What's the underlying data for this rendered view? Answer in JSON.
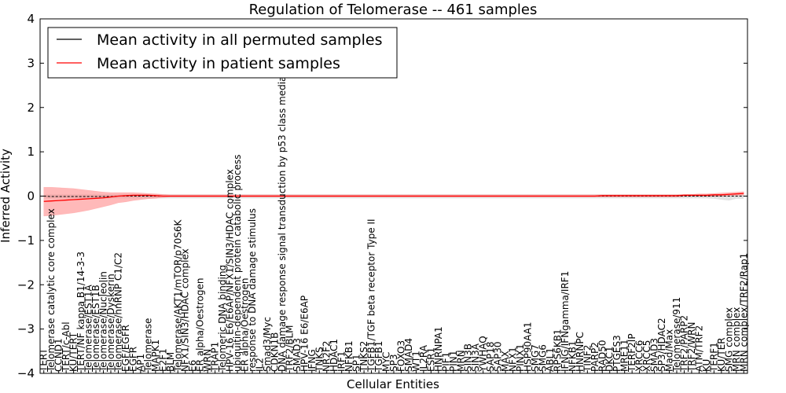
{
  "chart_data": {
    "type": "line",
    "title": "Regulation of Telomerase -- 461 samples",
    "xlabel": "Cellular Entities",
    "ylabel": "Inferred Activity",
    "ylim": [
      -4,
      4
    ],
    "yticks": [
      -4,
      -3,
      -2,
      -1,
      0,
      1,
      2,
      3,
      4
    ],
    "ytick_labels": [
      "−4",
      "−3",
      "−2",
      "−1",
      "0",
      "1",
      "2",
      "3",
      "4"
    ],
    "grid": false,
    "legend_position": "top-left",
    "colors": {
      "permuted": "#000000",
      "patient": "#ff0000",
      "patient_band": "#ff7f7f",
      "permuted_band": "#b0b0b0"
    },
    "categories": [
      "TERT",
      "Telomerase catalytic core complex",
      "CCND1",
      "TERT/c-Abl",
      "KU/TERT",
      "TERT/NF kappa B1/14-3-3",
      "Telomerase/EST1A",
      "Telomerase/EST1B",
      "Telomerase/Nucleolin",
      "Telomerase/Dyskerin",
      "Telomerase/hnRNP C1/C2",
      "EGF/EGFR",
      "EGFR",
      "AP1",
      "Telomerase",
      "MAPK1",
      "E2F1",
      "BLM",
      "Telomerase/AKT1/mTOR/p70S6K",
      "NFX1/SIN3/HDAC complex",
      "E6",
      "ER alpha/Oestrogen",
      "WRN",
      "TRAP1",
      "Telomeric DNA binding",
      "HPV-16 E6/E6AP/NFX1/SIN3/HDAC complex",
      "ubiquitin-dependent protein catabolic process",
      "ER alpha/Oestrogen",
      "response to DNA damage stimulus",
      "IL2",
      "Smad3/Myc",
      "CDKN1B",
      "DNA damage response signal transduction by p53 class mediator",
      "TRF2/BLM",
      "SMAD3",
      "HPV-16 E6/E6AP",
      "IFNG",
      "TNKS",
      "NR2F2",
      "HDAC1",
      "IRF1",
      "NFKB1",
      "SP1",
      "TNKS2",
      "TGFB1/TGF beta receptor Type II",
      "TGFB1",
      "MYC",
      "SP3",
      "FOXO3",
      "SMAD4",
      "WT1",
      "IL2RA",
      "ESR1",
      "HNRNPA1",
      "PIF1",
      "PIN1",
      "MRN",
      "SIN3B",
      "SIN3A",
      "YWHAQ",
      "SAP18",
      "SAP30",
      "MAX",
      "NFX1",
      "PINX1",
      "HSP90AA1",
      "SMG7",
      "SMG6",
      "ABL1",
      "RPS6KB1",
      "IFNG/IFNgamma/IRF1",
      "NFKB1",
      "HNRNPC",
      "TINF2",
      "PARP2",
      "RAD50",
      "DKC1",
      "PTGES3",
      "MRE11",
      "TERF2IP",
      "XRCC6",
      "XRCC5",
      "SMAD3",
      "SP3/HDAC2",
      "Mad/Max",
      "Telomerase/911",
      "TRF2/PARP2",
      "TRF2/WRN",
      "ATM/TRF2",
      "KU",
      "TERF1",
      "KU/TER",
      "SMG complex",
      "MRN complex",
      "MRN complex/TRF2/Rap1"
    ],
    "series": [
      {
        "name": "Mean activity in all permuted samples",
        "values": [
          0.0,
          -0.01,
          -0.01,
          -0.01,
          -0.01,
          -0.01,
          -0.01,
          -0.01,
          -0.01,
          -0.01,
          0.0,
          0.0,
          0.0,
          0.0,
          0.0,
          0.0,
          0.0,
          0.0,
          0.0,
          0.0,
          0.0,
          0.0,
          0.0,
          0.0,
          0.0,
          0.0,
          0.0,
          0.0,
          0.0,
          0.0,
          0.0,
          0.0,
          0.0,
          0.0,
          0.0,
          0.0,
          0.0,
          0.0,
          0.0,
          0.0,
          0.0,
          0.0,
          0.0,
          0.0,
          0.0,
          0.0,
          0.0,
          0.0,
          0.0,
          0.0,
          0.0,
          0.0,
          0.0,
          0.0,
          0.0,
          0.0,
          0.0,
          0.0,
          0.0,
          0.0,
          0.0,
          0.0,
          0.0,
          0.0,
          0.0,
          0.0,
          0.0,
          0.0,
          0.0,
          0.0,
          0.0,
          0.0,
          0.0,
          0.0,
          0.0,
          0.0,
          0.0,
          0.0,
          0.0,
          0.0,
          0.0,
          0.0,
          0.0,
          0.0,
          0.0,
          0.0,
          0.0,
          0.0,
          0.0,
          0.0,
          0.0,
          0.0,
          0.0,
          0.0,
          0.0
        ],
        "band_low": [
          -0.05,
          -0.05,
          -0.05,
          -0.05,
          -0.05,
          -0.05,
          -0.05,
          -0.05,
          -0.05,
          -0.05,
          -0.05,
          -0.05,
          -0.05,
          -0.05,
          -0.05,
          -0.05,
          -0.05,
          -0.05,
          -0.05,
          -0.05,
          -0.05,
          -0.05,
          -0.05,
          -0.05,
          -0.05,
          -0.05,
          -0.05,
          -0.05,
          -0.05,
          -0.05,
          -0.05,
          -0.05,
          -0.05,
          -0.05,
          -0.05,
          -0.05,
          -0.05,
          -0.05,
          -0.05,
          -0.05,
          -0.05,
          -0.05,
          -0.05,
          -0.05,
          -0.05,
          -0.05,
          -0.05,
          -0.05,
          -0.05,
          -0.05,
          -0.05,
          -0.05,
          -0.05,
          -0.05,
          -0.05,
          -0.05,
          -0.05,
          -0.05,
          -0.05,
          -0.05,
          -0.05,
          -0.05,
          -0.05,
          -0.05,
          -0.05,
          -0.05,
          -0.05,
          -0.05,
          -0.05,
          -0.05,
          -0.05,
          -0.05,
          -0.05,
          -0.05,
          -0.05,
          -0.05,
          -0.05,
          -0.05,
          -0.05,
          -0.05,
          -0.05,
          -0.05,
          -0.05,
          -0.05,
          -0.05,
          -0.05,
          -0.05,
          -0.05,
          -0.05,
          -0.05,
          -0.06,
          -0.08,
          -0.1,
          -0.06,
          -0.06
        ],
        "band_high": [
          0.04,
          0.04,
          0.04,
          0.04,
          0.04,
          0.04,
          0.04,
          0.04,
          0.04,
          0.04,
          0.04,
          0.04,
          0.04,
          0.04,
          0.04,
          0.04,
          0.04,
          0.04,
          0.04,
          0.04,
          0.04,
          0.04,
          0.04,
          0.04,
          0.04,
          0.04,
          0.04,
          0.04,
          0.04,
          0.04,
          0.04,
          0.04,
          0.04,
          0.04,
          0.04,
          0.04,
          0.04,
          0.04,
          0.04,
          0.04,
          0.04,
          0.04,
          0.04,
          0.04,
          0.04,
          0.04,
          0.04,
          0.04,
          0.04,
          0.04,
          0.04,
          0.04,
          0.04,
          0.04,
          0.04,
          0.04,
          0.04,
          0.04,
          0.04,
          0.04,
          0.04,
          0.04,
          0.04,
          0.04,
          0.04,
          0.04,
          0.04,
          0.04,
          0.04,
          0.04,
          0.04,
          0.04,
          0.04,
          0.04,
          0.04,
          0.04,
          0.04,
          0.04,
          0.04,
          0.04,
          0.04,
          0.04,
          0.04,
          0.04,
          0.04,
          0.04,
          0.04,
          0.04,
          0.04,
          0.04,
          0.04,
          0.04,
          0.04,
          0.04,
          0.04
        ]
      },
      {
        "name": "Mean activity in patient samples",
        "values": [
          -0.12,
          -0.11,
          -0.1,
          -0.09,
          -0.08,
          -0.07,
          -0.06,
          -0.05,
          -0.04,
          -0.02,
          0.0,
          0.01,
          0.02,
          0.02,
          0.02,
          0.01,
          0.0,
          0.0,
          0.0,
          0.0,
          0.0,
          0.0,
          0.0,
          0.0,
          0.0,
          0.0,
          0.0,
          0.0,
          0.0,
          0.0,
          0.0,
          0.0,
          0.0,
          0.0,
          0.0,
          0.0,
          0.0,
          0.0,
          0.0,
          0.0,
          0.0,
          0.0,
          0.0,
          0.0,
          0.0,
          0.0,
          0.0,
          0.0,
          0.0,
          0.0,
          0.0,
          0.0,
          0.0,
          0.0,
          0.0,
          0.0,
          0.0,
          0.0,
          0.0,
          0.0,
          0.0,
          0.0,
          0.0,
          0.0,
          0.0,
          0.0,
          0.0,
          0.0,
          0.0,
          0.0,
          0.0,
          0.0,
          0.0,
          0.0,
          0.0,
          0.01,
          0.01,
          0.01,
          0.01,
          0.01,
          0.01,
          0.01,
          0.01,
          0.01,
          0.01,
          0.01,
          0.02,
          0.02,
          0.02,
          0.02,
          0.03,
          0.03,
          0.04,
          0.05,
          0.06
        ],
        "band_low": [
          -0.45,
          -0.44,
          -0.42,
          -0.4,
          -0.38,
          -0.35,
          -0.32,
          -0.28,
          -0.24,
          -0.2,
          -0.15,
          -0.13,
          -0.1,
          -0.08,
          -0.06,
          -0.05,
          -0.03,
          -0.02,
          -0.02,
          -0.02,
          -0.02,
          -0.02,
          -0.02,
          -0.02,
          -0.02,
          -0.02,
          -0.02,
          -0.02,
          -0.02,
          -0.02,
          -0.02,
          -0.02,
          -0.02,
          -0.02,
          -0.02,
          -0.02,
          -0.02,
          -0.02,
          -0.02,
          -0.02,
          -0.02,
          -0.02,
          -0.02,
          -0.02,
          -0.02,
          -0.02,
          -0.02,
          -0.02,
          -0.02,
          -0.02,
          -0.02,
          -0.02,
          -0.02,
          -0.02,
          -0.02,
          -0.02,
          -0.02,
          -0.02,
          -0.02,
          -0.02,
          -0.02,
          -0.02,
          -0.02,
          -0.02,
          -0.02,
          -0.02,
          -0.02,
          -0.02,
          -0.02,
          -0.02,
          -0.02,
          -0.02,
          -0.02,
          -0.02,
          -0.02,
          -0.02,
          -0.02,
          -0.02,
          -0.02,
          -0.02,
          -0.02,
          -0.02,
          -0.02,
          -0.02,
          -0.02,
          -0.02,
          -0.01,
          -0.01,
          -0.01,
          -0.01,
          -0.01,
          0.0,
          0.01,
          0.02,
          0.02
        ],
        "band_high": [
          0.2,
          0.2,
          0.19,
          0.18,
          0.17,
          0.15,
          0.13,
          0.11,
          0.09,
          0.08,
          0.08,
          0.08,
          0.08,
          0.07,
          0.06,
          0.05,
          0.04,
          0.03,
          0.03,
          0.03,
          0.03,
          0.03,
          0.03,
          0.03,
          0.03,
          0.03,
          0.03,
          0.03,
          0.03,
          0.03,
          0.03,
          0.03,
          0.03,
          0.03,
          0.03,
          0.03,
          0.03,
          0.03,
          0.03,
          0.03,
          0.03,
          0.03,
          0.03,
          0.03,
          0.03,
          0.03,
          0.03,
          0.03,
          0.03,
          0.03,
          0.03,
          0.03,
          0.03,
          0.03,
          0.03,
          0.03,
          0.03,
          0.03,
          0.03,
          0.03,
          0.03,
          0.03,
          0.03,
          0.03,
          0.03,
          0.03,
          0.03,
          0.03,
          0.03,
          0.03,
          0.03,
          0.03,
          0.03,
          0.03,
          0.03,
          0.03,
          0.03,
          0.03,
          0.03,
          0.03,
          0.03,
          0.03,
          0.03,
          0.03,
          0.03,
          0.03,
          0.04,
          0.04,
          0.05,
          0.05,
          0.06,
          0.07,
          0.08,
          0.09,
          0.1
        ]
      }
    ]
  }
}
